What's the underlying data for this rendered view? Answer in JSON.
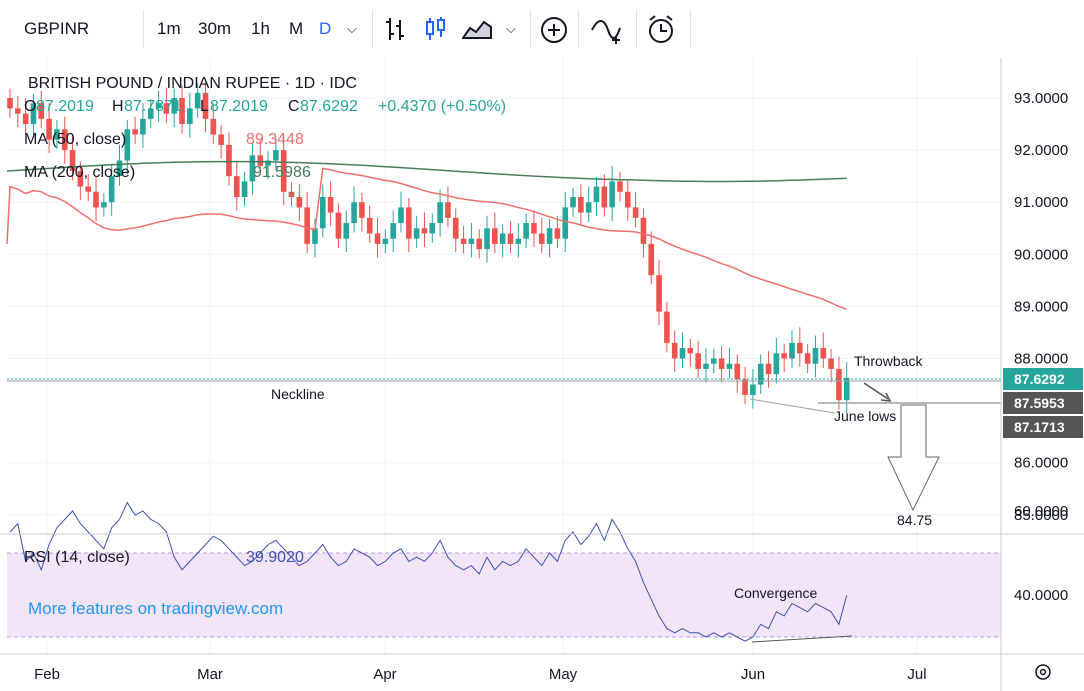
{
  "toolbar": {
    "symbol": "GBPINR",
    "intervals": [
      "1m",
      "30m",
      "1h",
      "M",
      "D"
    ],
    "active_interval": "D",
    "icons": [
      "chevron-down-icon",
      "bar-style-icon",
      "candle-style-icon",
      "area-style-icon",
      "chevron-down-icon",
      "compare-plus-icon",
      "indicators-icon",
      "alert-clock-icon"
    ]
  },
  "legend": {
    "title": "BRITISH POUND / INDIAN RUPEE · 1D · IDC",
    "open": "87.2019",
    "high": "87.7871",
    "low": "87.2019",
    "close": "87.6292",
    "change": "+0.4370 (+0.50%)",
    "ma50_label": "MA (50, close)",
    "ma50_value": "89.3448",
    "ma200_label": "MA (200, close)",
    "ma200_value": "91.5986",
    "rsi_label": "RSI (14, close)",
    "rsi_value": "39.9020",
    "watermark": "More features on tradingview.com"
  },
  "colors": {
    "up": "#26a69a",
    "down": "#ef5350",
    "ma50": "#ef6f6c",
    "ma200": "#4a7c59",
    "rsi": "#3f51b5",
    "rsi_band": "#f3e5f8"
  },
  "chart_data": {
    "type": "candlestick",
    "symbol": "GBPINR",
    "timeframe": "1D",
    "yrange": [
      84.7,
      93.5
    ],
    "yticks": [
      "93.0000",
      "92.0000",
      "91.0000",
      "90.0000",
      "89.0000",
      "88.0000",
      "86.0000",
      "85.0000"
    ],
    "xticks": [
      "Feb",
      "Mar",
      "Apr",
      "May",
      "Jun",
      "Jul"
    ],
    "ohlc_close": [
      92.8,
      92.7,
      92.5,
      92.9,
      92.6,
      92.2,
      92.4,
      92.0,
      91.6,
      91.3,
      91.2,
      90.9,
      91.0,
      91.5,
      91.8,
      92.4,
      92.3,
      92.6,
      92.8,
      92.9,
      92.7,
      93.0,
      92.5,
      92.8,
      93.1,
      92.6,
      92.3,
      92.1,
      91.5,
      91.1,
      91.4,
      91.9,
      91.7,
      91.8,
      92.0,
      91.2,
      91.1,
      90.9,
      90.2,
      90.5,
      91.1,
      90.8,
      90.3,
      90.6,
      91.0,
      90.7,
      90.4,
      90.2,
      90.3,
      90.6,
      90.9,
      90.3,
      90.5,
      90.4,
      90.6,
      91.0,
      90.7,
      90.3,
      90.2,
      90.3,
      90.1,
      90.5,
      90.2,
      90.4,
      90.2,
      90.3,
      90.6,
      90.4,
      90.2,
      90.5,
      90.3,
      90.9,
      91.1,
      90.8,
      91.0,
      91.3,
      90.9,
      91.4,
      91.2,
      90.9,
      90.7,
      90.2,
      89.6,
      88.9,
      88.3,
      88.0,
      88.2,
      88.1,
      87.8,
      87.9,
      88.0,
      87.8,
      87.9,
      87.6,
      87.3,
      87.5,
      87.9,
      87.7,
      88.1,
      88.0,
      88.3,
      88.1,
      87.9,
      88.2,
      88.0,
      87.8,
      87.2,
      87.6292
    ],
    "neckline": 87.6,
    "june_lows": 87.5953,
    "target": 84.75,
    "price_badges": [
      "87.6292",
      "87.5953",
      "87.1713"
    ],
    "rsi_range": [
      25,
      70
    ],
    "rsi_ticks": [
      "60.0000",
      "40.0000"
    ],
    "rsi_values": [
      55,
      57,
      48,
      50,
      46,
      52,
      56,
      58,
      60,
      57,
      55,
      53,
      51,
      56,
      58,
      62,
      59,
      60,
      58,
      57,
      55,
      49,
      46,
      48,
      50,
      52,
      54,
      53,
      51,
      49,
      47,
      48,
      50,
      52,
      53,
      51,
      49,
      47,
      48,
      50,
      52,
      49,
      47,
      48,
      51,
      50,
      49,
      47,
      48,
      50,
      51,
      48,
      49,
      48,
      50,
      53,
      49,
      47,
      46,
      47,
      45,
      49,
      46,
      48,
      47,
      48,
      51,
      49,
      47,
      50,
      48,
      53,
      55,
      52,
      54,
      57,
      53,
      58,
      55,
      51,
      48,
      43,
      39,
      35,
      32,
      31,
      32,
      31,
      31,
      30,
      31,
      30,
      31,
      30,
      29,
      30,
      33,
      32,
      36,
      35,
      38,
      37,
      36,
      38,
      37,
      36,
      33,
      39.902
    ],
    "annotations": {
      "neckline": "Neckline",
      "throwback": "Throwback",
      "june_lows": "June lows",
      "target": "84.75",
      "convergence": "Convergence"
    }
  }
}
